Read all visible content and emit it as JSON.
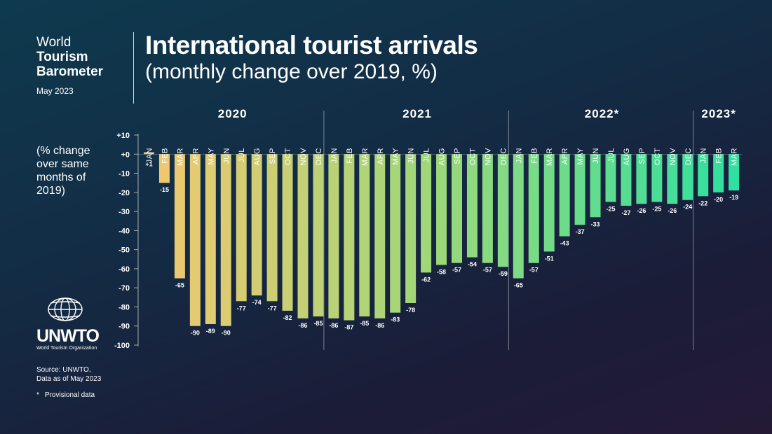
{
  "brand": {
    "line1": "World",
    "line2": "Tourism",
    "line3": "Barometer",
    "date": "May 2023"
  },
  "title": "International tourist arrivals",
  "subtitle": "(monthly change over 2019, %)",
  "y_note": "(% change over same months of 2019)",
  "logo": {
    "text": "UNWTO",
    "subtext": "World Tourism Organization"
  },
  "source": {
    "line1": "Source: UNWTO,",
    "line2": "Data as of May 2023"
  },
  "footnote": {
    "marker": "*",
    "text": "Provisional data"
  },
  "colors": {
    "start": "#f2c76e",
    "mid": "#9ad87a",
    "end": "#2fe0a0"
  },
  "chart_data": {
    "type": "bar",
    "title": "International tourist arrivals",
    "subtitle": "(monthly change over 2019, %)",
    "ylabel": "(% change over same months of 2019)",
    "ylim": [
      -100,
      10
    ],
    "yticks": [
      10,
      0,
      -10,
      -20,
      -30,
      -40,
      -50,
      -60,
      -70,
      -80,
      -90,
      -100
    ],
    "ytick_labels": [
      "+10",
      "+0",
      "-10",
      "-20",
      "-30",
      "-40",
      "-50",
      "-60",
      "-70",
      "-80",
      "-90",
      "-100"
    ],
    "years": [
      {
        "label": "2020",
        "months": 12
      },
      {
        "label": "2021",
        "months": 12
      },
      {
        "label": "2022*",
        "months": 12
      },
      {
        "label": "2023*",
        "months": 3
      }
    ],
    "categories": [
      "JAN",
      "FEB",
      "MAR",
      "APR",
      "MAY",
      "JUN",
      "JUL",
      "AUG",
      "SEP",
      "OCT",
      "NOV",
      "DEC",
      "JAN",
      "FEB",
      "MAR",
      "APR",
      "MAY",
      "JUN",
      "JUL",
      "AUG",
      "SEP",
      "OCT",
      "NOV",
      "DEC",
      "JAN",
      "FEB",
      "MAR",
      "APR",
      "MAY",
      "JUN",
      "JUL",
      "AUG",
      "SEP",
      "OCT",
      "NOV",
      "DEC",
      "JAN",
      "FEB",
      "MAR"
    ],
    "values": [
      1,
      -15,
      -65,
      -90,
      -89,
      -90,
      -77,
      -74,
      -77,
      -82,
      -86,
      -85,
      -86,
      -87,
      -85,
      -86,
      -83,
      -78,
      -62,
      -58,
      -57,
      -54,
      -57,
      -59,
      -65,
      -57,
      -51,
      -43,
      -37,
      -33,
      -25,
      -27,
      -26,
      -25,
      -26,
      -24,
      -22,
      -20,
      -19
    ],
    "value_labels": [
      "+1",
      "-15",
      "-65",
      "-90",
      "-89",
      "-90",
      "-77",
      "-74",
      "-77",
      "-82",
      "-86",
      "-85",
      "-86",
      "-87",
      "-85",
      "-86",
      "-83",
      "-78",
      "-62",
      "-58",
      "-57",
      "-54",
      "-57",
      "-59",
      "-65",
      "-57",
      "-51",
      "-43",
      "-37",
      "-33",
      "-25",
      "-27",
      "-26",
      "-25",
      "-26",
      "-24",
      "-22",
      "-20",
      "-19"
    ]
  }
}
